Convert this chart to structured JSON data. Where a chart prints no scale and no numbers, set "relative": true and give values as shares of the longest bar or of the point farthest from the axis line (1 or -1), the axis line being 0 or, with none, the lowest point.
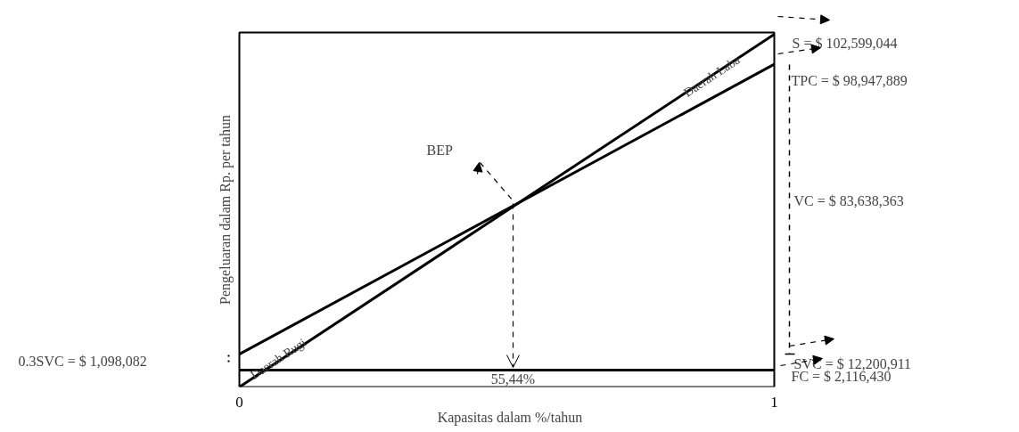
{
  "chart_data": {
    "type": "line",
    "relative": true,
    "xlabel": "Kapasitas dalam %/tahun",
    "ylabel": "Pengeluaran dalam Rp. per tahun",
    "x": [
      0,
      1
    ],
    "xlim": [
      0,
      1
    ],
    "xticks": [
      0,
      1
    ],
    "grid": false,
    "marker": "none",
    "line_style": "solid",
    "series": [
      {
        "color": "#000000",
        "values": [
          0,
          1
        ]
      },
      {
        "color": "#000000",
        "values": [
          0.093,
          0.915
        ]
      },
      {
        "color": "#000000",
        "values": [
          0.048,
          0.048
        ]
      }
    ],
    "annotations": [
      "S = $ 102,599,044",
      "TPC = $ 98,947,889",
      "FC = $ 2,116,430",
      "VC = $ 83,638,363",
      "SVC = $ 12,200,911",
      "0.3SVC = $ 1,098,082",
      "BEP",
      "55,44%",
      "Daerah Rugi",
      "Daerah Laba"
    ]
  }
}
